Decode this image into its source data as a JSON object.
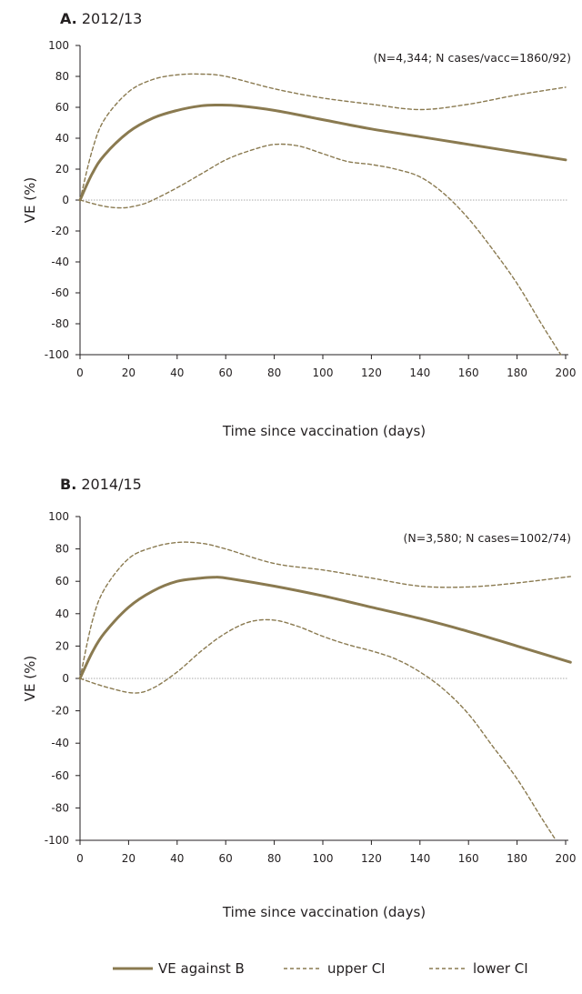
{
  "colors": {
    "line": "#8a7a50",
    "zero": "#aaaaaa",
    "axis": "#231f20"
  },
  "legend": [
    {
      "label": "VE against B",
      "style": "solid"
    },
    {
      "label": "upper CI",
      "style": "dashed"
    },
    {
      "label": "lower CI",
      "style": "dashed"
    }
  ],
  "chart_data": [
    {
      "type": "line",
      "panel_letter": "A.",
      "title": "2012/13",
      "annotation": "(N=4,344; N cases/vacc=1860/92)",
      "xlabel": "Time since vaccination (days)",
      "ylabel": "VE (%)",
      "xlim": [
        0,
        200
      ],
      "ylim": [
        -100,
        100
      ],
      "xticks": [
        "0",
        "20",
        "40",
        "60",
        "80",
        "100",
        "120",
        "140",
        "160",
        "180",
        "200"
      ],
      "yticks": [
        "100",
        "80",
        "60",
        "40",
        "20",
        "0",
        "-20",
        "-40",
        "-60",
        "-80",
        "-100"
      ],
      "series": [
        {
          "name": "VE against B",
          "style": "solid",
          "x": [
            0,
            5,
            10,
            20,
            30,
            40,
            50,
            57,
            65,
            80,
            100,
            120,
            140,
            160,
            180,
            200
          ],
          "y": [
            0,
            17,
            29,
            44,
            53,
            58,
            61,
            61.5,
            61,
            58,
            52,
            46,
            41,
            36,
            31,
            26
          ]
        },
        {
          "name": "upper CI",
          "style": "dashed",
          "x": [
            0,
            5,
            10,
            20,
            30,
            40,
            50,
            60,
            80,
            100,
            120,
            140,
            160,
            180,
            200
          ],
          "y": [
            0,
            32,
            52,
            70,
            78,
            81,
            81.5,
            80,
            72,
            66,
            62,
            58.5,
            62,
            68,
            73
          ]
        },
        {
          "name": "lower CI",
          "style": "dashed",
          "x": [
            0,
            10,
            18,
            25,
            30,
            40,
            50,
            60,
            70,
            80,
            90,
            100,
            110,
            120,
            130,
            140,
            150,
            160,
            170,
            180,
            190,
            198
          ],
          "y": [
            0,
            -4,
            -5,
            -3,
            0,
            8,
            17,
            26,
            32,
            36,
            35,
            30,
            25,
            23,
            20,
            15,
            4,
            -12,
            -32,
            -54,
            -80,
            -100
          ]
        }
      ]
    },
    {
      "type": "line",
      "panel_letter": "B.",
      "title": "2014/15",
      "annotation": "(N=3,580; N cases=1002/74)",
      "xlabel": "Time since vaccination (days)",
      "ylabel": "VE (%)",
      "xlim": [
        0,
        200
      ],
      "ylim": [
        -100,
        100
      ],
      "xticks": [
        "0",
        "20",
        "40",
        "60",
        "80",
        "100",
        "120",
        "140",
        "160",
        "180",
        "200"
      ],
      "yticks": [
        "100",
        "80",
        "60",
        "40",
        "20",
        "0",
        "-20",
        "-40",
        "-60",
        "-80",
        "-100"
      ],
      "series": [
        {
          "name": "VE against B",
          "style": "solid",
          "x": [
            0,
            5,
            10,
            20,
            30,
            40,
            50,
            55,
            60,
            80,
            100,
            120,
            140,
            160,
            180,
            202
          ],
          "y": [
            0,
            16,
            28,
            44,
            54,
            60,
            62,
            62.5,
            62,
            57,
            51,
            44,
            37,
            29,
            20,
            10
          ]
        },
        {
          "name": "upper CI",
          "style": "dashed",
          "x": [
            0,
            5,
            10,
            20,
            30,
            40,
            50,
            60,
            80,
            100,
            120,
            140,
            160,
            180,
            202
          ],
          "y": [
            0,
            35,
            55,
            74,
            81,
            84,
            83.5,
            80,
            71,
            67,
            62,
            57,
            56.5,
            59,
            63
          ]
        },
        {
          "name": "lower CI",
          "style": "dashed",
          "x": [
            0,
            10,
            22,
            30,
            40,
            50,
            60,
            70,
            80,
            90,
            100,
            110,
            120,
            130,
            140,
            150,
            160,
            170,
            180,
            190,
            196
          ],
          "y": [
            0,
            -5,
            -9,
            -6,
            4,
            17,
            28,
            35,
            36,
            32,
            26,
            21,
            17,
            12,
            4,
            -7,
            -22,
            -42,
            -62,
            -86,
            -100
          ]
        }
      ]
    }
  ]
}
